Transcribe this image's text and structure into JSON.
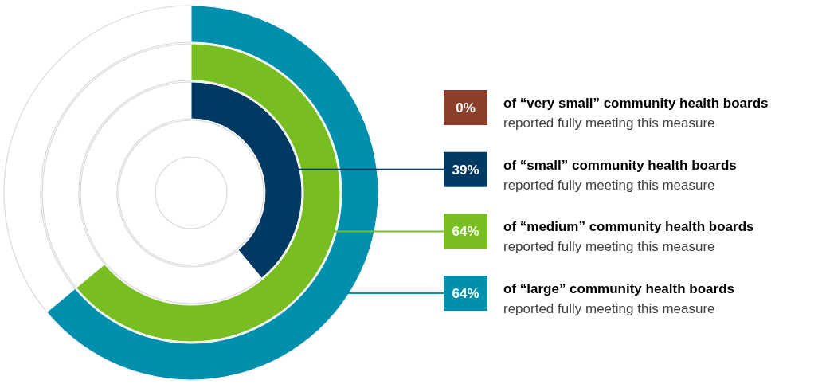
{
  "chart_data": {
    "type": "other",
    "categories": [
      "of “very small” community health boards",
      "of “small” community health boards",
      "of “medium” community health boards",
      "of “large” community health boards"
    ],
    "values": [
      0,
      39,
      64,
      64
    ],
    "value_labels": [
      "0%",
      "39%",
      "64%",
      "64%"
    ],
    "colors": [
      "#8b3f2b",
      "#003a63",
      "#78be21",
      "#008fac"
    ],
    "annotations": [
      "reported fully meeting this measure",
      "reported fully meeting this measure",
      "reported fully meeting this measure",
      "reported fully meeting this measure"
    ]
  }
}
